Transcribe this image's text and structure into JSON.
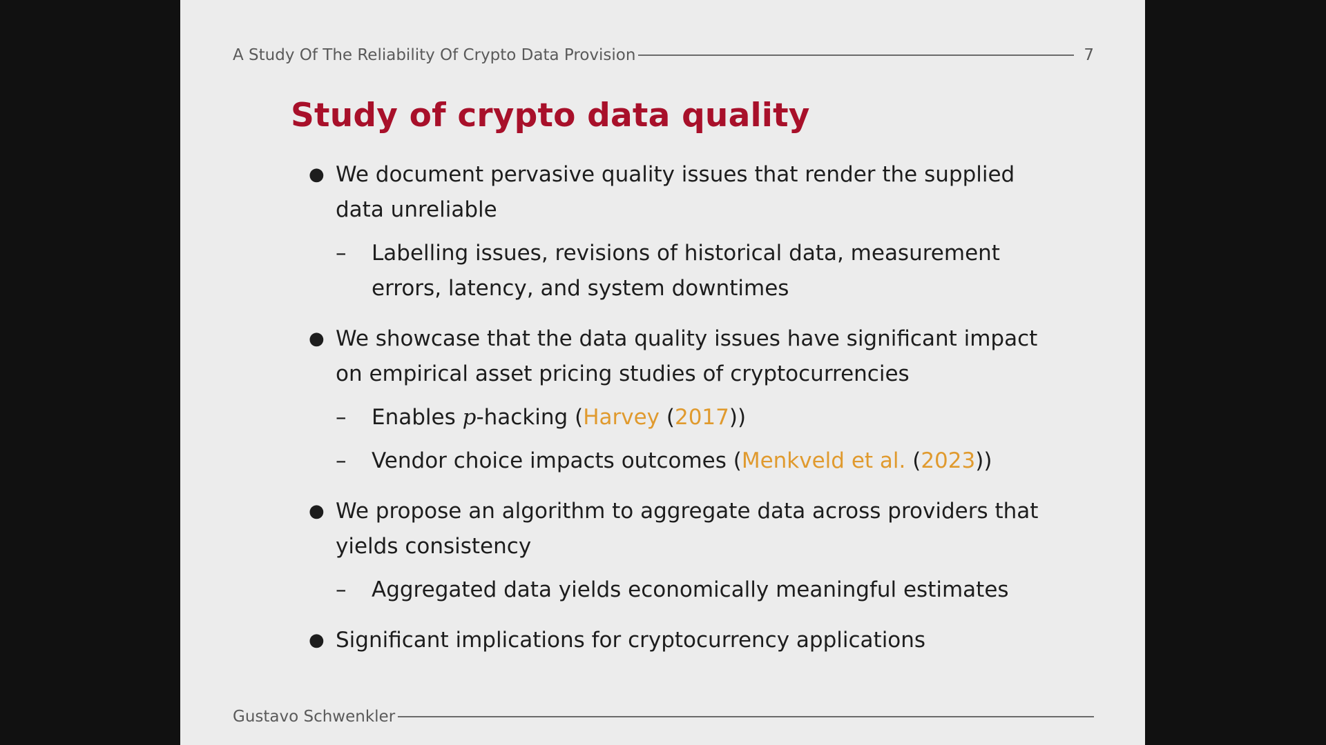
{
  "header": {
    "title": "A Study Of The Reliability Of Crypto Data Provision",
    "page_number": "7"
  },
  "slide": {
    "title": "Study of crypto data quality",
    "bullets": [
      {
        "text": "We document pervasive quality issues that render the supplied data unreliable",
        "subs": [
          {
            "text": "Labelling issues, revisions of historical data, measurement errors, latency, and system downtimes"
          }
        ]
      },
      {
        "text": "We showcase that the data quality issues have significant impact on empirical asset pricing studies of cryptocurrencies",
        "subs": [
          {
            "before": "Enables ",
            "math": "p",
            "after": "-hacking (",
            "cite_author": "Harvey",
            "open": " (",
            "cite_year": "2017",
            "close": "))"
          },
          {
            "before": "Vendor choice impacts outcomes (",
            "cite_author": "Menkveld et al.",
            "open": " (",
            "cite_year": "2023",
            "close": "))"
          }
        ]
      },
      {
        "text": "We propose an algorithm to aggregate data across providers that yields consistency",
        "subs": [
          {
            "text": "Aggregated data yields economically meaningful estimates"
          }
        ]
      },
      {
        "text": "Significant implications for cryptocurrency applications",
        "subs": []
      }
    ],
    "bullet_symbol": "●",
    "sub_symbol": "–"
  },
  "footer": {
    "author": "Gustavo Schwenkler"
  },
  "colors": {
    "title": "#a8102a",
    "citation": "#e09a2e",
    "slide_background": "#ececec",
    "outer_background": "#111111"
  }
}
